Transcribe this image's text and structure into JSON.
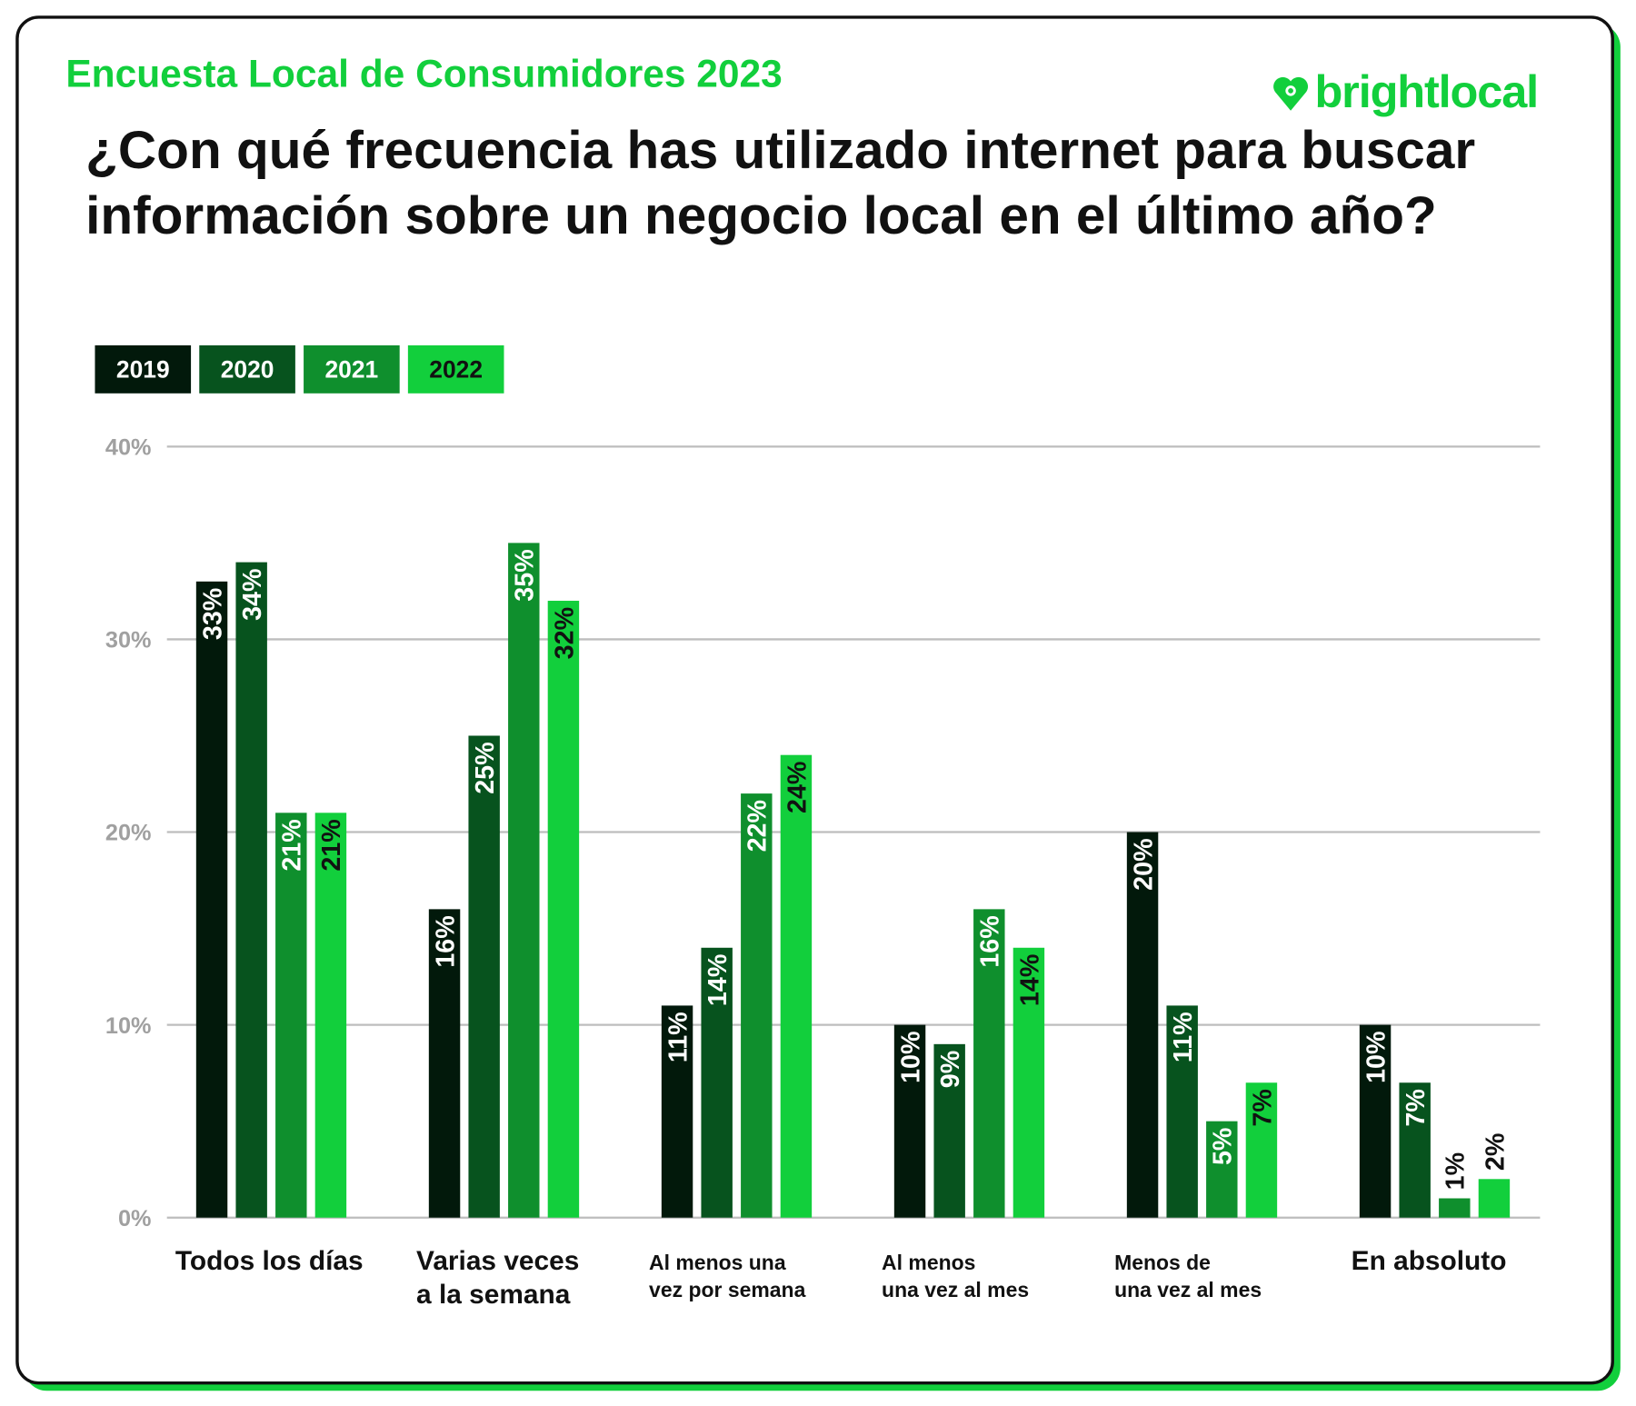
{
  "header": {
    "kicker": "Encuesta Local de Consumidores 2023",
    "logo_text": "brightlocal",
    "logo_icon": "heart-pin-icon"
  },
  "colors": {
    "2019": "#02190b",
    "2020": "#07531e",
    "2021": "#0f8f2d",
    "2022": "#12cf3c",
    "grid": "#bdbdbd",
    "tick": "#a0a0a0"
  },
  "chart_data": {
    "type": "bar",
    "title": "¿Con qué frecuencia has utilizado internet para buscar información sobre un negocio local en el último año?",
    "categories": [
      "Todos los días",
      "Varias veces\na la semana",
      "Al menos una\nvez por semana",
      "Al menos\nuna vez al mes",
      "Menos de\nuna vez al mes",
      "En absoluto"
    ],
    "series": [
      {
        "name": "2019",
        "values": [
          33,
          16,
          11,
          10,
          20,
          10
        ]
      },
      {
        "name": "2020",
        "values": [
          34,
          25,
          14,
          9,
          11,
          7
        ]
      },
      {
        "name": "2021",
        "values": [
          21,
          35,
          22,
          16,
          5,
          1
        ]
      },
      {
        "name": "2022",
        "values": [
          21,
          32,
          24,
          14,
          7,
          2
        ]
      }
    ],
    "ylim": [
      0,
      40
    ],
    "yticks": [
      "0%",
      "10%",
      "20%",
      "30%",
      "40%"
    ],
    "grid": true,
    "legend_placement": "top-left",
    "value_suffix": "%"
  }
}
